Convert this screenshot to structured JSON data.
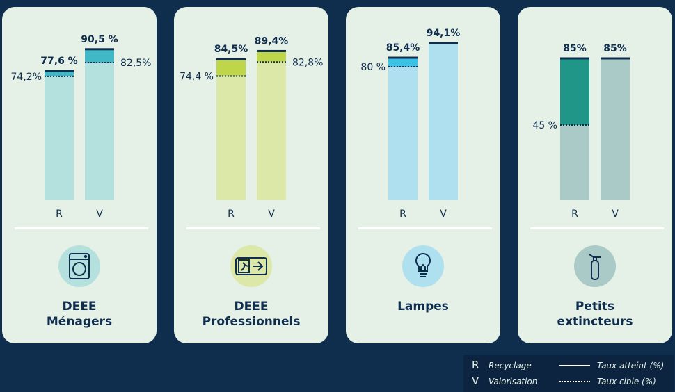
{
  "chart_data": [
    {
      "type": "bar",
      "categories": [
        "R",
        "V"
      ],
      "series": [
        {
          "name": "Taux atteint (%)",
          "values": [
            77.6,
            90.5
          ],
          "labels": [
            "77,6 %",
            "90,5 %"
          ]
        },
        {
          "name": "Taux cible (%)",
          "values": [
            74.2,
            82.5
          ],
          "labels": [
            "74,2%",
            "82,5%"
          ]
        }
      ],
      "title": "",
      "title_lines": [
        "DEEE",
        "Ménagers"
      ],
      "icon": "washing-machine-icon",
      "colors": {
        "bar": "#b4e0de",
        "excess": "#41b8c6",
        "circle": "#b4e0de"
      },
      "ylim": [
        0,
        100
      ]
    },
    {
      "type": "bar",
      "categories": [
        "R",
        "V"
      ],
      "series": [
        {
          "name": "Taux atteint (%)",
          "values": [
            84.5,
            89.4
          ],
          "labels": [
            "84,5%",
            "89,4%"
          ]
        },
        {
          "name": "Taux cible (%)",
          "values": [
            74.4,
            82.8
          ],
          "labels": [
            "74,4 %",
            "82,8%"
          ]
        }
      ],
      "title": "",
      "title_lines": [
        "DEEE",
        "Professionnels"
      ],
      "icon": "emergency-exit-sign-icon",
      "colors": {
        "bar": "#dbe8a8",
        "excess": "#bfd64a",
        "circle": "#dbe8a8"
      },
      "ylim": [
        0,
        100
      ]
    },
    {
      "type": "bar",
      "categories": [
        "R",
        "V"
      ],
      "series": [
        {
          "name": "Taux atteint (%)",
          "values": [
            85.4,
            94.1
          ],
          "labels": [
            "85,4%",
            "94,1%"
          ]
        },
        {
          "name": "Taux cible (%)",
          "values": [
            80,
            null
          ],
          "labels": [
            "80 %",
            ""
          ]
        }
      ],
      "title": "",
      "title_lines": [
        "Lampes"
      ],
      "icon": "light-bulb-icon",
      "colors": {
        "bar": "#afe0f0",
        "excess": "#3cc2e6",
        "circle": "#afe0f0"
      },
      "ylim": [
        0,
        100
      ]
    },
    {
      "type": "bar",
      "categories": [
        "R",
        "V"
      ],
      "series": [
        {
          "name": "Taux atteint (%)",
          "values": [
            85,
            85
          ],
          "labels": [
            "85%",
            "85%"
          ]
        },
        {
          "name": "Taux cible (%)",
          "values": [
            45,
            null
          ],
          "labels": [
            "45 %",
            ""
          ]
        }
      ],
      "title": "",
      "title_lines": [
        "Petits",
        "extincteurs"
      ],
      "icon": "fire-extinguisher-icon",
      "colors": {
        "bar": "#a9cac6",
        "excess": "#1f9688",
        "circle": "#a9cac6"
      },
      "ylim": [
        0,
        100
      ]
    }
  ],
  "legend": {
    "items": [
      {
        "key": "R",
        "label": "Recyclage"
      },
      {
        "key": "V",
        "label": "Valorisation"
      }
    ],
    "lines": [
      {
        "style": "solid",
        "label": "Taux atteint (%)"
      },
      {
        "style": "dotted",
        "label": "Taux cible (%)"
      }
    ]
  }
}
